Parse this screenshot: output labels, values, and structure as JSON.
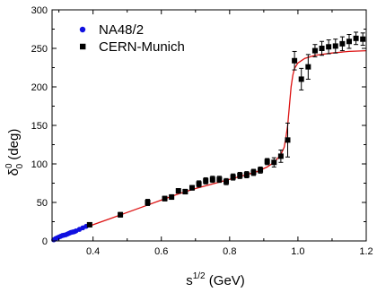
{
  "chart_data": {
    "type": "scatter",
    "xlabel": "s",
    "xlabel_sup": "1/2",
    "xlabel_unit": " (GeV)",
    "ylabel": "δ",
    "ylabel_sup": "0",
    "ylabel_sub": "0",
    "ylabel_unit": " (deg)",
    "xlim": [
      0.28,
      1.2
    ],
    "ylim": [
      0,
      300
    ],
    "x_ticks": [
      0.4,
      0.6,
      0.8,
      1.0,
      1.2
    ],
    "x_tick_labels": [
      "0.4",
      "0.6",
      "0.8",
      "1.0",
      "1.2"
    ],
    "y_ticks": [
      0,
      50,
      100,
      150,
      200,
      250,
      300
    ],
    "y_tick_labels": [
      "0",
      "50",
      "100",
      "150",
      "200",
      "250",
      "300"
    ],
    "grid": false,
    "legend_position": "top-left",
    "series": [
      {
        "name": "NA48/2",
        "marker": "circle",
        "color": "#1010e0",
        "x": [
          0.285,
          0.29,
          0.295,
          0.3,
          0.305,
          0.31,
          0.315,
          0.32,
          0.325,
          0.33,
          0.335,
          0.34,
          0.345,
          0.35,
          0.36,
          0.37,
          0.38
        ],
        "y": [
          1.5,
          3,
          4,
          5,
          6,
          7,
          7.5,
          8,
          9,
          10,
          11,
          11.5,
          12,
          13,
          15,
          17,
          19
        ]
      },
      {
        "name": "CERN-Munich",
        "marker": "square",
        "color": "#000000",
        "x": [
          0.39,
          0.48,
          0.56,
          0.61,
          0.63,
          0.65,
          0.67,
          0.69,
          0.71,
          0.73,
          0.75,
          0.77,
          0.79,
          0.81,
          0.83,
          0.85,
          0.87,
          0.89,
          0.91,
          0.93,
          0.95,
          0.97,
          0.99,
          1.01,
          1.03,
          1.05,
          1.07,
          1.09,
          1.11,
          1.13,
          1.15,
          1.17,
          1.19
        ],
        "y": [
          21,
          34,
          50,
          55,
          57,
          65,
          64,
          69,
          74,
          78,
          80,
          80,
          77,
          83,
          85,
          86,
          89,
          92,
          103,
          102,
          110,
          131,
          234,
          210,
          226,
          247,
          250,
          252,
          253,
          256,
          259,
          263,
          262
        ],
        "err": [
          2,
          3,
          4,
          3,
          3,
          3,
          3,
          3,
          4,
          4,
          4,
          4,
          4,
          4,
          4,
          4,
          4,
          4,
          4,
          6,
          8,
          22,
          12,
          14,
          16,
          8,
          9,
          9,
          9,
          9,
          9,
          8,
          8
        ]
      }
    ],
    "curve": {
      "color": "#dd1111",
      "x": [
        0.285,
        0.3,
        0.35,
        0.4,
        0.45,
        0.5,
        0.55,
        0.6,
        0.65,
        0.7,
        0.75,
        0.8,
        0.85,
        0.88,
        0.91,
        0.93,
        0.95,
        0.96,
        0.965,
        0.97,
        0.975,
        0.98,
        0.985,
        0.99,
        1.0,
        1.02,
        1.05,
        1.1,
        1.15,
        1.2
      ],
      "y": [
        1,
        4,
        13,
        21,
        29,
        37,
        45,
        53,
        61,
        68,
        74,
        80,
        86,
        90,
        96,
        102,
        112,
        122,
        135,
        150,
        175,
        200,
        215,
        224,
        231,
        237,
        241,
        244,
        246,
        247
      ]
    }
  }
}
